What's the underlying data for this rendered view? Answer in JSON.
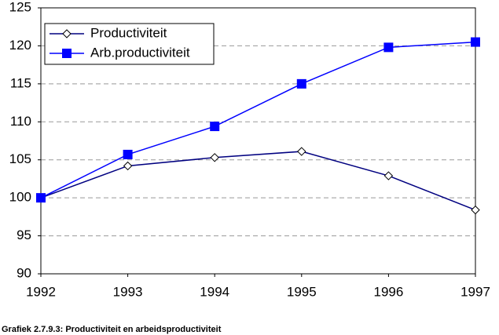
{
  "chart_data": {
    "type": "line",
    "x": [
      1992,
      1993,
      1994,
      1995,
      1996,
      1997
    ],
    "series": [
      {
        "name": "Productiviteit",
        "color": "#000080",
        "marker": "diamond",
        "values": [
          100,
          104.2,
          105.3,
          106.1,
          102.9,
          98.4
        ]
      },
      {
        "name": "Arb.productiviteit",
        "color": "#0000ff",
        "marker": "square",
        "values": [
          100,
          105.7,
          109.4,
          115.0,
          119.8,
          120.5
        ]
      }
    ],
    "xlim": [
      1992,
      1997
    ],
    "xticks": [
      1992,
      1993,
      1994,
      1995,
      1996,
      1997
    ],
    "ylim": [
      90,
      125
    ],
    "yticks": [
      90,
      95,
      100,
      105,
      110,
      115,
      120,
      125
    ],
    "grid": true,
    "legend": "top-left",
    "caption": "Grafiek 2.7.9.3: Productiviteit en arbeidsproductiviteit"
  }
}
